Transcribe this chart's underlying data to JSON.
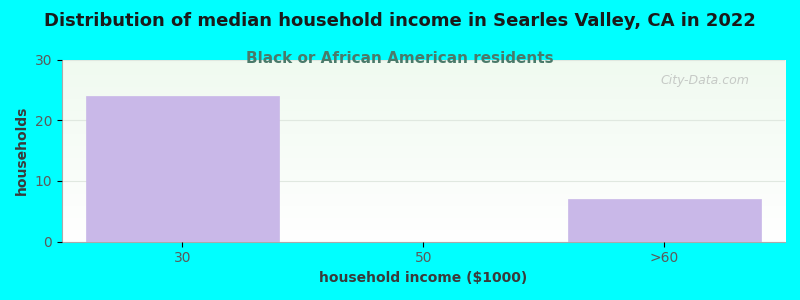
{
  "title": "Distribution of median household income in Searles Valley, CA in 2022",
  "subtitle": "Black or African American residents",
  "xlabel": "household income ($1000)",
  "ylabel": "households",
  "categories": [
    "30",
    "50",
    ">60"
  ],
  "values": [
    24,
    0,
    7
  ],
  "bar_color": "#C9B8E8",
  "bar_edgecolor": "#C9B8E8",
  "background_color": "#00FFFF",
  "title_color": "#1a1a1a",
  "subtitle_color": "#4a7a6a",
  "axis_label_color": "#3a3a3a",
  "tick_color": "#5a5a5a",
  "grid_color": "#e0e8e0",
  "ylim": [
    0,
    30
  ],
  "yticks": [
    0,
    10,
    20,
    30
  ],
  "watermark": "City-Data.com",
  "title_fontsize": 13,
  "subtitle_fontsize": 11,
  "label_fontsize": 10
}
